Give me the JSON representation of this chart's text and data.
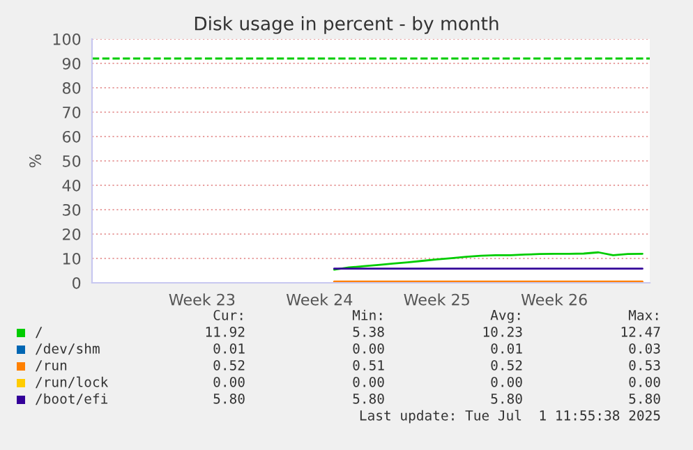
{
  "chart_data": {
    "type": "line",
    "title": "Disk usage in percent - by month",
    "ylabel": "%",
    "categories": [
      null,
      null,
      null,
      null,
      null,
      null,
      null,
      "Week 23",
      null,
      null,
      null,
      null,
      null,
      null,
      null,
      "Week 24",
      null,
      null,
      null,
      null,
      null,
      null,
      null,
      "Week 25",
      null,
      null,
      null,
      null,
      null,
      null,
      null,
      "Week 26",
      null,
      null,
      null,
      null,
      null,
      null
    ],
    "series": [
      {
        "name": "/",
        "color": "#00cc00",
        "values": [
          null,
          null,
          null,
          null,
          null,
          null,
          null,
          null,
          null,
          null,
          null,
          null,
          null,
          null,
          null,
          null,
          5.4,
          6.3,
          6.8,
          7.3,
          7.9,
          8.4,
          9.0,
          9.6,
          10.1,
          10.7,
          11.1,
          11.3,
          11.3,
          11.6,
          11.8,
          11.9,
          11.9,
          12.0,
          12.5,
          11.3,
          11.8,
          11.9
        ]
      },
      {
        "name": "/dev/shm",
        "color": "#0066b3",
        "values": [
          null,
          null,
          null,
          null,
          null,
          null,
          null,
          null,
          null,
          null,
          null,
          null,
          null,
          null,
          null,
          null,
          null,
          null,
          null,
          null,
          null,
          null,
          null,
          null,
          null,
          null,
          null,
          null,
          null,
          null,
          null,
          null,
          null,
          null,
          null,
          null,
          null,
          null
        ]
      },
      {
        "name": "/run",
        "color": "#ff8000",
        "values": [
          null,
          null,
          null,
          null,
          null,
          null,
          null,
          null,
          null,
          null,
          null,
          null,
          null,
          null,
          null,
          null,
          0.5,
          0.5,
          0.5,
          0.5,
          0.5,
          0.5,
          0.5,
          0.5,
          0.5,
          0.5,
          0.5,
          0.5,
          0.5,
          0.5,
          0.5,
          0.5,
          0.5,
          0.5,
          0.5,
          0.5,
          0.5,
          0.5
        ]
      },
      {
        "name": "/run/lock",
        "color": "#ffcc00",
        "values": [
          null,
          null,
          null,
          null,
          null,
          null,
          null,
          null,
          null,
          null,
          null,
          null,
          null,
          null,
          null,
          null,
          null,
          null,
          null,
          null,
          null,
          null,
          null,
          null,
          null,
          null,
          null,
          null,
          null,
          null,
          null,
          null,
          null,
          null,
          null,
          null,
          null,
          null
        ]
      },
      {
        "name": "/boot/efi",
        "color": "#330099",
        "values": [
          null,
          null,
          null,
          null,
          null,
          null,
          null,
          null,
          null,
          null,
          null,
          null,
          null,
          null,
          null,
          null,
          5.8,
          5.8,
          5.8,
          5.8,
          5.8,
          5.8,
          5.8,
          5.8,
          5.8,
          5.8,
          5.8,
          5.8,
          5.8,
          5.8,
          5.8,
          5.8,
          5.8,
          5.8,
          5.8,
          5.8,
          5.8,
          5.8
        ]
      }
    ],
    "ylim": [
      0,
      100
    ],
    "yticks": [
      0,
      10,
      20,
      30,
      40,
      50,
      60,
      70,
      80,
      90,
      100
    ],
    "ref_lines": [
      {
        "axis": "y",
        "value": 92,
        "color": "#00cc00",
        "line_style": "dashed"
      }
    ],
    "grid": "y",
    "legend": "bottom",
    "line_style": "solid",
    "marker": "none",
    "annotations": [
      "Cur:",
      "Min:",
      "Avg:",
      "Max:",
      "11.92",
      "5.38",
      "10.23",
      "12.47",
      "0.01",
      "0.00",
      "0.01",
      "0.03",
      "0.52",
      "0.51",
      "0.52",
      "0.53",
      "0.00",
      "0.00",
      "0.00",
      "0.00",
      "5.80",
      "5.80",
      "5.80",
      "5.80",
      "Last update: Tue Jul  1 11:55:38 2025"
    ]
  }
}
